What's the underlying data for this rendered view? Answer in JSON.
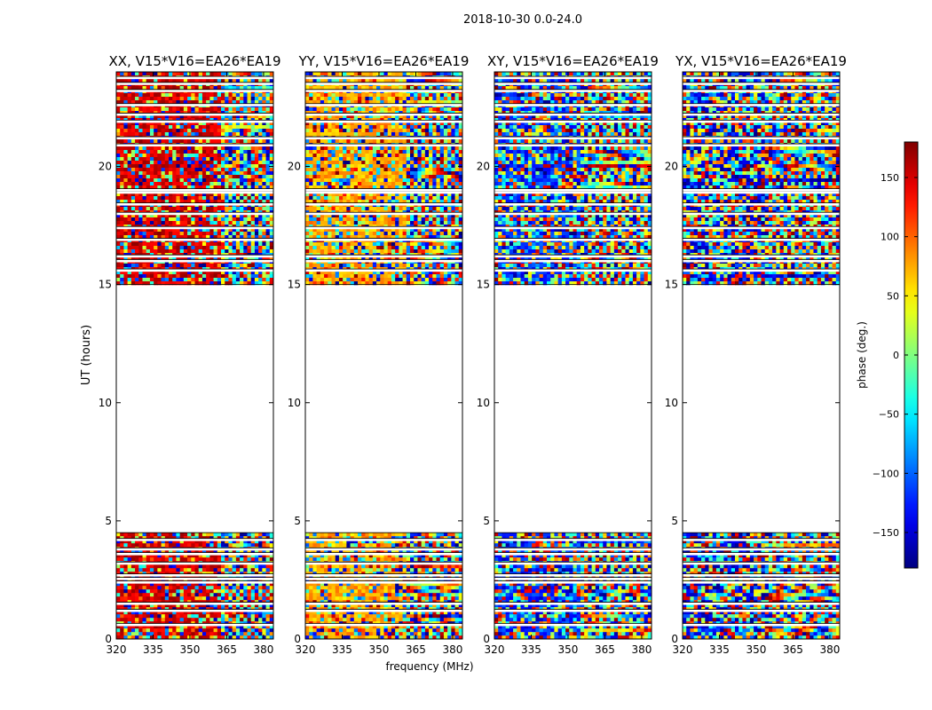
{
  "chart_data": {
    "type": "heatmap",
    "suptitle": "2018-10-30 0.0-24.0",
    "xlabel": "frequency (MHz)",
    "ylabel": "UT (hours)",
    "xlim": [
      320,
      384
    ],
    "ylim": [
      0,
      24
    ],
    "xticks": [
      320,
      335,
      350,
      365,
      380
    ],
    "yticks": [
      0,
      5,
      10,
      15,
      20
    ],
    "colorbar": {
      "label": "phase (deg.)",
      "range": [
        -180,
        180
      ],
      "ticks": [
        -150,
        -100,
        -50,
        0,
        50,
        100,
        150
      ],
      "colormap": "jet",
      "colors": [
        "#00007f",
        "#0000ff",
        "#007fff",
        "#00ffff",
        "#7fff7f",
        "#ffff00",
        "#ff7f00",
        "#ff0000",
        "#7f0000"
      ]
    },
    "observed_ut_ranges": [
      [
        0.0,
        4.5
      ],
      [
        15.0,
        24.0
      ]
    ],
    "gap_lines_ut": [
      0.6,
      1.2,
      1.5,
      2.4,
      2.55,
      2.7,
      3.2,
      3.6,
      3.8,
      4.2,
      15.6,
      16.0,
      16.2,
      16.9,
      17.4,
      18.0,
      18.4,
      18.9,
      19.0,
      20.9,
      21.2,
      21.9,
      22.2,
      22.6,
      23.2,
      23.5,
      23.75
    ],
    "panels": [
      {
        "title": "XX, V15*V16=EA26*EA19",
        "dominant_phase_deg": 150,
        "noise": 0.42,
        "fringe_start_mhz": 362
      },
      {
        "title": "YY, V15*V16=EA26*EA19",
        "dominant_phase_deg": 75,
        "noise": 0.45,
        "fringe_start_mhz": 360
      },
      {
        "title": "XY, V15*V16=EA26*EA19",
        "dominant_phase_deg": -120,
        "noise": 0.7,
        "fringe_start_mhz": 355
      },
      {
        "title": "YX, V15*V16=EA26*EA19",
        "dominant_phase_deg": -150,
        "noise": 0.85,
        "fringe_start_mhz": 355
      }
    ]
  }
}
